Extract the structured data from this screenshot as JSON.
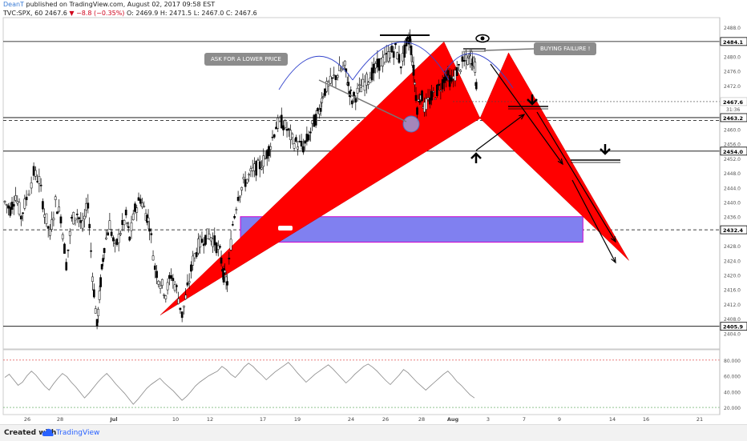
{
  "header": {
    "author": "DeanT",
    "published": "published on TradingView.com, August 02, 2017 09:58 EST",
    "symbol": "TVC:SPX, 60",
    "last": "2467.6",
    "change": "▼ −8.8 (−0.35%)",
    "ohlc": "O: 2469.9  H: 2471.5  L: 2467.0  C: 2467.6"
  },
  "footer": {
    "created_label": "Created with",
    "brand": "TradingView"
  },
  "annotations": {
    "ask_lower": "ASK FOR A LOWER PRICE",
    "buying_failure": "BUYING FAILURE !"
  },
  "colors": {
    "pattern_fill": "#ff0000",
    "zone_fill": "#8080f0",
    "arc": "#3344cc",
    "candle": "#000000",
    "rsi_line": "#888888",
    "rsi_upper": "#e05050",
    "rsi_lower": "#50a050"
  },
  "chart_data": {
    "type": "candlestick",
    "price_axis": {
      "range": [
        2401,
        2490
      ],
      "ticks": [
        2404,
        2408,
        2412,
        2416,
        2420,
        2424,
        2428,
        2432,
        2436,
        2440,
        2444,
        2448,
        2452,
        2456,
        2460,
        2464,
        2468,
        2472,
        2476,
        2480,
        2484,
        2488
      ],
      "labels": [
        {
          "value": 2484.1,
          "text": "2484.1",
          "style": "box"
        },
        {
          "value": 2467.6,
          "text": "2467.6",
          "style": "plain"
        },
        {
          "value": 2463.2,
          "text": "2463.2",
          "style": "box"
        },
        {
          "value": 2454.0,
          "text": "2454.0",
          "style": "box"
        },
        {
          "value": 2432.4,
          "text": "2432.4",
          "style": "box"
        },
        {
          "value": 2405.9,
          "text": "2405.9",
          "style": "box"
        }
      ],
      "countdown": "31:36"
    },
    "time_axis": {
      "labels": [
        "26",
        "28",
        "Jul",
        "10",
        "12",
        "17",
        "19",
        "24",
        "26",
        "28",
        "Aug",
        "3",
        "7",
        "9",
        "14",
        "16",
        "21"
      ],
      "bold": [
        "Jul",
        "Aug"
      ]
    },
    "horizontal_levels": [
      {
        "value": 2484.1,
        "style": "solid"
      },
      {
        "value": 2463.2,
        "style": "solid"
      },
      {
        "value": 2462.4,
        "style": "dashed"
      },
      {
        "value": 2454.0,
        "style": "solid"
      },
      {
        "value": 2432.4,
        "style": "dashed"
      },
      {
        "value": 2405.9,
        "style": "solid"
      }
    ],
    "candle_range": {
      "first_bar": 0,
      "last_bar": 420
    },
    "series_path": [
      [
        0,
        2440
      ],
      [
        6,
        2438
      ],
      [
        12,
        2442
      ],
      [
        18,
        2436
      ],
      [
        24,
        2441
      ],
      [
        32,
        2448
      ],
      [
        38,
        2446
      ],
      [
        44,
        2437
      ],
      [
        50,
        2431
      ],
      [
        56,
        2440
      ],
      [
        62,
        2436
      ],
      [
        68,
        2423
      ],
      [
        74,
        2435
      ],
      [
        80,
        2437
      ],
      [
        86,
        2433
      ],
      [
        92,
        2440
      ],
      [
        97,
        2420
      ],
      [
        102,
        2406
      ],
      [
        106,
        2418
      ],
      [
        110,
        2428
      ],
      [
        116,
        2434
      ],
      [
        122,
        2427
      ],
      [
        128,
        2432
      ],
      [
        134,
        2436
      ],
      [
        138,
        2430
      ],
      [
        144,
        2438
      ],
      [
        150,
        2441
      ],
      [
        156,
        2437
      ],
      [
        160,
        2434
      ],
      [
        166,
        2422
      ],
      [
        172,
        2418
      ],
      [
        178,
        2415
      ],
      [
        184,
        2420
      ],
      [
        190,
        2416
      ],
      [
        196,
        2409
      ],
      [
        202,
        2416
      ],
      [
        208,
        2424
      ],
      [
        214,
        2428
      ],
      [
        220,
        2430
      ],
      [
        226,
        2431
      ],
      [
        232,
        2429
      ],
      [
        238,
        2426
      ],
      [
        242,
        2420
      ],
      [
        246,
        2418
      ],
      [
        252,
        2434
      ],
      [
        258,
        2442
      ],
      [
        264,
        2445
      ],
      [
        270,
        2447
      ],
      [
        276,
        2449
      ],
      [
        282,
        2450
      ],
      [
        288,
        2452
      ],
      [
        294,
        2456
      ],
      [
        300,
        2461
      ],
      [
        306,
        2462
      ],
      [
        312,
        2460
      ],
      [
        318,
        2457
      ],
      [
        324,
        2456
      ],
      [
        330,
        2455
      ],
      [
        336,
        2458
      ],
      [
        342,
        2462
      ],
      [
        348,
        2465
      ],
      [
        352,
        2470
      ],
      [
        358,
        2472
      ],
      [
        364,
        2474
      ],
      [
        370,
        2476
      ],
      [
        376,
        2477
      ],
      [
        380,
        2472
      ],
      [
        384,
        2468
      ],
      [
        390,
        2470
      ],
      [
        396,
        2472
      ],
      [
        402,
        2474
      ],
      [
        408,
        2476
      ],
      [
        414,
        2478
      ],
      [
        420,
        2479
      ],
      [
        426,
        2481
      ],
      [
        432,
        2482
      ],
      [
        438,
        2478
      ],
      [
        444,
        2483
      ],
      [
        448,
        2485
      ],
      [
        452,
        2476
      ],
      [
        456,
        2466
      ],
      [
        460,
        2470
      ],
      [
        464,
        2466
      ],
      [
        470,
        2468
      ],
      [
        476,
        2470
      ],
      [
        482,
        2472
      ],
      [
        488,
        2475
      ],
      [
        494,
        2473
      ],
      [
        500,
        2476
      ],
      [
        506,
        2478
      ],
      [
        512,
        2479
      ],
      [
        516,
        2480
      ],
      [
        520,
        2477
      ],
      [
        522,
        2468
      ]
    ],
    "pattern": {
      "left_triangle": [
        [
          0,
          2409
        ],
        [
          448,
          2484
        ],
        [
          505,
          2463
        ]
      ],
      "right_triangle": [
        [
          505,
          2463
        ],
        [
          550,
          2481
        ],
        [
          740,
          2424
        ]
      ]
    },
    "zone": {
      "x_from": 250,
      "x_to": 655,
      "from": 2429,
      "to": 2436
    },
    "rsi": {
      "upper": 80,
      "lower": 20,
      "ticks": [
        80,
        60,
        40,
        20
      ],
      "values": [
        58,
        62,
        55,
        48,
        52,
        60,
        66,
        61,
        54,
        47,
        42,
        50,
        57,
        63,
        59,
        52,
        46,
        39,
        32,
        38,
        45,
        52,
        58,
        63,
        57,
        50,
        44,
        38,
        31,
        24,
        30,
        37,
        44,
        49,
        53,
        57,
        51,
        46,
        41,
        35,
        29,
        34,
        40,
        47,
        52,
        56,
        60,
        63,
        66,
        72,
        68,
        62,
        58,
        64,
        71,
        76,
        72,
        66,
        61,
        55,
        60,
        65,
        69,
        73,
        77,
        71,
        64,
        58,
        52,
        57,
        62,
        66,
        70,
        74,
        69,
        63,
        57,
        51,
        56,
        62,
        67,
        72,
        75,
        71,
        66,
        60,
        54,
        49,
        55,
        61,
        68,
        64,
        58,
        52,
        47,
        42,
        47,
        52,
        57,
        62,
        66,
        60,
        53,
        48,
        42,
        36,
        32
      ]
    }
  }
}
